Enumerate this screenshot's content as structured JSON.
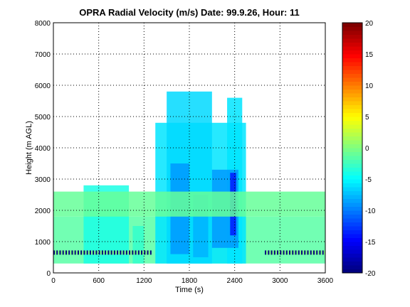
{
  "chart_data": {
    "type": "heatmap",
    "title": "OPRA Radial Velocity (m/s)  Date: 99.9.26, Hour: 11",
    "xlabel": "Time (s)",
    "ylabel": "Height (m AGL)",
    "xlim": [
      0,
      3600
    ],
    "ylim": [
      0,
      8000
    ],
    "x_ticks": [
      "0",
      "600",
      "1200",
      "1800",
      "2400",
      "3000",
      "3600"
    ],
    "y_ticks": [
      "0",
      "1000",
      "2000",
      "3000",
      "4000",
      "5000",
      "6000",
      "7000",
      "8000"
    ],
    "grid": true,
    "colorbar": {
      "range": [
        -20,
        20
      ],
      "ticks": [
        "20",
        "15",
        "10",
        "5",
        "0",
        "-5",
        "-10",
        "-15",
        "-20"
      ],
      "colormap": "jet"
    },
    "regions": [
      {
        "t": [
          0,
          3600
        ],
        "h": [
          300,
          1800
        ],
        "value": -1.5
      },
      {
        "t": [
          400,
          1000
        ],
        "h": [
          300,
          2800
        ],
        "value": -4
      },
      {
        "t": [
          1050,
          1200
        ],
        "h": [
          300,
          1500
        ],
        "value": -3
      },
      {
        "t": [
          1350,
          2550
        ],
        "h": [
          300,
          4800
        ],
        "value": -6
      },
      {
        "t": [
          1500,
          2100
        ],
        "h": [
          300,
          5800
        ],
        "value": -6.5
      },
      {
        "t": [
          2300,
          2500
        ],
        "h": [
          300,
          5600
        ],
        "value": -6
      },
      {
        "t": [
          1550,
          1800
        ],
        "h": [
          600,
          3500
        ],
        "value": -9
      },
      {
        "t": [
          2100,
          2450
        ],
        "h": [
          800,
          3300
        ],
        "value": -9
      },
      {
        "t": [
          2340,
          2420
        ],
        "h": [
          1200,
          3200
        ],
        "value": -14
      },
      {
        "t": [
          1850,
          2050
        ],
        "h": [
          500,
          2500
        ],
        "value": -8
      },
      {
        "t": [
          0,
          3600
        ],
        "h": [
          1800,
          2600
        ],
        "value": -1
      }
    ],
    "scatter_lines": [
      {
        "h": 650,
        "t_range": [
          0,
          1300
        ],
        "note": "noisy speckle near ground"
      },
      {
        "h": 650,
        "t_range": [
          2800,
          3600
        ],
        "note": "noisy speckle near ground"
      }
    ]
  }
}
